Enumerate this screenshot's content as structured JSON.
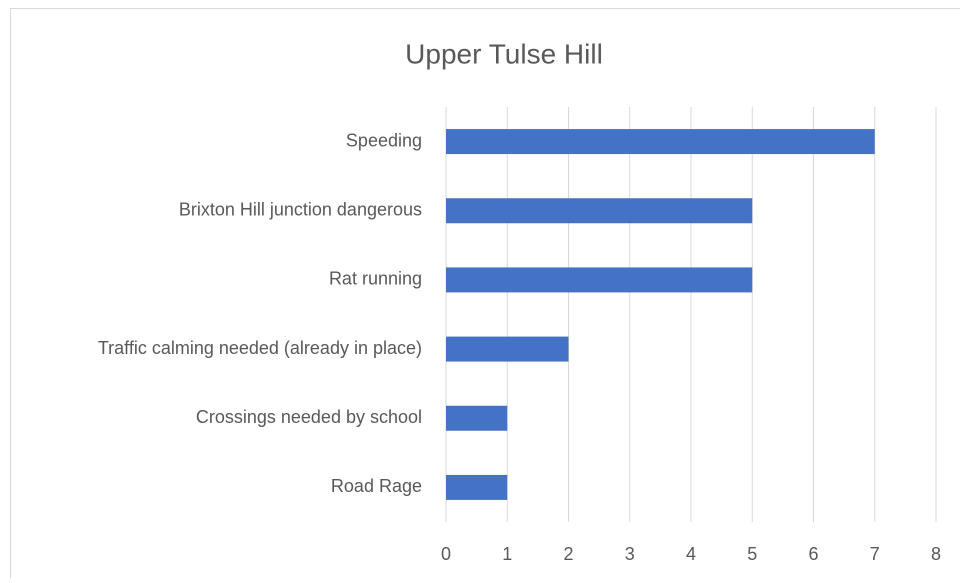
{
  "chart_data": {
    "type": "bar",
    "orientation": "horizontal",
    "title": "Upper Tulse Hill",
    "categories": [
      "Speeding",
      "Brixton Hill junction dangerous",
      "Rat running",
      "Traffic calming needed (already in place)",
      "Crossings needed by school",
      "Road Rage"
    ],
    "values": [
      7,
      5,
      5,
      2,
      1,
      1
    ],
    "color": "#4472c4",
    "xlim": [
      0,
      8
    ],
    "xticks": [
      0,
      1,
      2,
      3,
      4,
      5,
      6,
      7,
      8
    ],
    "grid": true
  }
}
